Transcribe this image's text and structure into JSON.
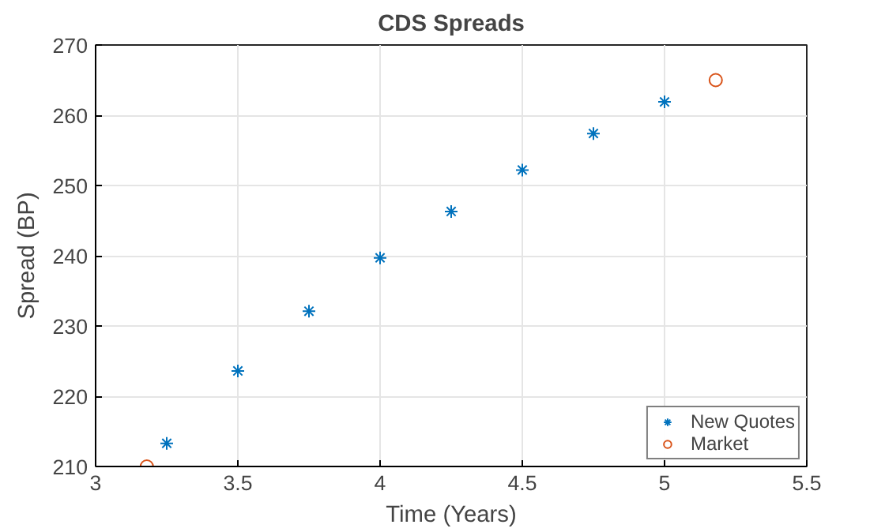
{
  "chart_data": {
    "type": "scatter",
    "title": "CDS Spreads",
    "xlabel": "Time (Years)",
    "ylabel": "Spread (BP)",
    "xlim": [
      3,
      5.5
    ],
    "xticks": [
      3,
      3.5,
      4,
      4.5,
      5,
      5.5
    ],
    "ylim": [
      210,
      270
    ],
    "yticks": [
      210,
      220,
      230,
      240,
      250,
      260,
      270
    ],
    "grid": true,
    "legend": "bottom right",
    "series": [
      {
        "name": "New Quotes",
        "color": "#0072bd",
        "marker": "cross",
        "x": [
          3.25,
          3.5,
          3.75,
          4,
          4.25,
          4.5,
          4.75,
          5
        ],
        "values": [
          213.3,
          223.6,
          232.1,
          239.7,
          246.3,
          252.2,
          257.4,
          261.9
        ]
      },
      {
        "name": "Market",
        "color": "#d95319",
        "marker": "circle",
        "x": [
          3.18,
          5.18
        ],
        "values": [
          210,
          265
        ]
      }
    ]
  }
}
